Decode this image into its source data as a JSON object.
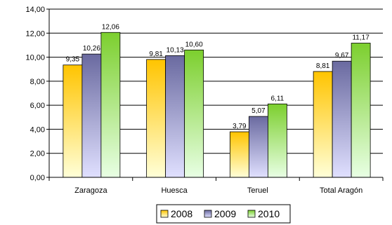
{
  "chart_data": {
    "type": "bar",
    "categories": [
      "Zaragoza",
      "Huesca",
      "Teruel",
      "Total Aragón"
    ],
    "series": [
      {
        "name": "2008",
        "values": [
          9.35,
          9.81,
          3.79,
          8.81
        ],
        "data_labels": [
          "9,35",
          "9,81",
          "3,79",
          "8,81"
        ]
      },
      {
        "name": "2009",
        "values": [
          10.26,
          10.13,
          5.07,
          9.67
        ],
        "data_labels": [
          "10,26",
          "10,13",
          "5,07",
          "9,67"
        ]
      },
      {
        "name": "2010",
        "values": [
          12.06,
          10.6,
          6.11,
          11.17
        ],
        "data_labels": [
          "12,06",
          "10,60",
          "6,11",
          "11,17"
        ]
      }
    ],
    "ylim": [
      0,
      14
    ],
    "yticks": [
      0,
      2,
      4,
      6,
      8,
      10,
      12,
      14
    ],
    "ytick_labels": [
      "0,00",
      "2,00",
      "4,00",
      "6,00",
      "8,00",
      "10,00",
      "12,00",
      "14,00"
    ],
    "grid": true,
    "legend_position": "bottom",
    "colors": {
      "2008": {
        "top": "#FFC400",
        "bottom": "#FFFFD8"
      },
      "2009": {
        "top": "#6A6AA0",
        "bottom": "#E0E0FF"
      },
      "2010": {
        "top": "#7CCF2E",
        "bottom": "#E8FFE4"
      }
    }
  }
}
